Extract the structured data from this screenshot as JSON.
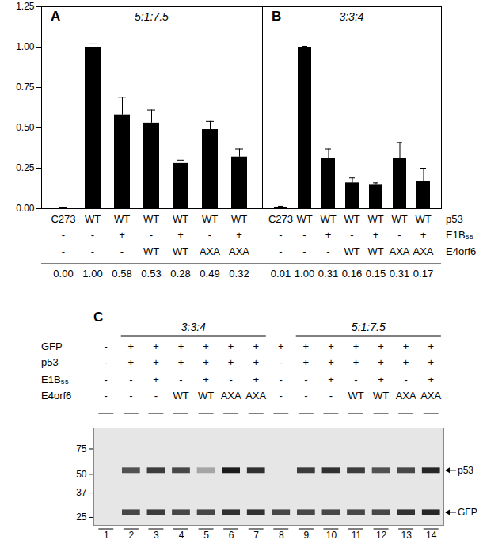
{
  "chart_data": [
    {
      "type": "bar",
      "title": "A",
      "subtitle": "5:1:7.5",
      "category_rows": [
        [
          "C273",
          "WT",
          "WT",
          "WT",
          "WT",
          "WT",
          "WT"
        ],
        [
          "-",
          "-",
          "+",
          "-",
          "+",
          "-",
          "+"
        ],
        [
          "-",
          "-",
          "-",
          "WT",
          "WT",
          "AXA",
          "AXA"
        ]
      ],
      "values": [
        0,
        1,
        0.58,
        0.53,
        0.28,
        0.49,
        0.32
      ],
      "value_labels": [
        "0.00",
        "1.00",
        "0.58",
        "0.53",
        "0.28",
        "0.49",
        "0.32"
      ],
      "errors": [
        0.005,
        0.02,
        0.11,
        0.08,
        0.02,
        0.05,
        0.05
      ],
      "color": "#000000",
      "data_labels": true,
      "tick_labels": "y",
      "ylim": [
        0,
        1.25
      ],
      "yticks": [
        {
          "value": 0,
          "label": "0.00"
        },
        0.25,
        {
          "value": 0.5,
          "label": "0.50"
        },
        0.75,
        {
          "value": 1,
          "label": "1.00"
        },
        1.25
      ]
    },
    {
      "type": "bar",
      "title": "B",
      "subtitle": "3:3:4",
      "category_rows": [
        [
          "C273",
          "WT",
          "WT",
          "WT",
          "WT",
          "WT",
          "WT"
        ],
        [
          "-",
          "-",
          "+",
          "-",
          "+",
          "-",
          "+"
        ],
        [
          "-",
          "-",
          "-",
          "WT",
          "WT",
          "AXA",
          "AXA"
        ]
      ],
      "row_names": [
        "p53",
        "E1B₅₅",
        "E4orf6"
      ],
      "values": [
        0.01,
        1,
        0.31,
        0.16,
        0.15,
        0.31,
        0.17
      ],
      "value_labels": [
        "0.01",
        "1.00",
        "0.31",
        "0.16",
        "0.15",
        "0.31",
        "0.17"
      ],
      "errors": [
        0.005,
        0.005,
        0.06,
        0.03,
        0.01,
        0.1,
        0.08
      ],
      "color": "#000000",
      "data_labels": true,
      "tick_labels": false,
      "ylim": [
        0,
        1.25
      ]
    }
  ],
  "blot": {
    "title": "C",
    "groups": [
      {
        "label": "3:3:4",
        "lanes": [
          2,
          7
        ]
      },
      {
        "label": "5:1:7.5",
        "lanes": [
          9,
          14
        ]
      }
    ],
    "rows": [
      {
        "name": "GFP",
        "labels": [
          "-",
          "+",
          "+",
          "+",
          "+",
          "+",
          "+",
          "+",
          "+",
          "+",
          "+",
          "+",
          "+",
          "+"
        ]
      },
      {
        "name": "p53",
        "labels": [
          "-",
          "+",
          "+",
          "+",
          "+",
          "+",
          "+",
          "-",
          "+",
          "+",
          "+",
          "+",
          "+",
          "+"
        ]
      },
      {
        "name": "E1B₅₅",
        "labels": [
          "-",
          "-",
          "+",
          "-",
          "+",
          "-",
          "+",
          "-",
          "-",
          "+",
          "-",
          "+",
          "-",
          "+"
        ]
      },
      {
        "name": "E4orf6",
        "labels": [
          "-",
          "-",
          "-",
          "WT",
          "WT",
          "AXA",
          "AXA",
          "-",
          "-",
          "-",
          "WT",
          "WT",
          "AXA",
          "AXA"
        ]
      }
    ],
    "lanes": [
      1,
      2,
      3,
      4,
      5,
      6,
      7,
      8,
      9,
      10,
      11,
      12,
      13,
      14
    ],
    "mw_lim": [
      22,
      105
    ],
    "mw_ticks": [
      75,
      50,
      37,
      25
    ],
    "bands": [
      {
        "name": "p53",
        "kda": 53,
        "intensity": [
          0,
          0.7,
          0.8,
          0.75,
          0.3,
          0.95,
          0.85,
          0,
          0.8,
          0.85,
          0.8,
          0.7,
          0.75,
          0.9
        ]
      },
      {
        "name": "GFP",
        "kda": 27,
        "intensity": [
          0,
          0.75,
          0.8,
          0.75,
          0.75,
          0.85,
          0.85,
          0.75,
          0.75,
          0.75,
          0.75,
          0.75,
          0.85,
          0.9
        ]
      }
    ]
  }
}
